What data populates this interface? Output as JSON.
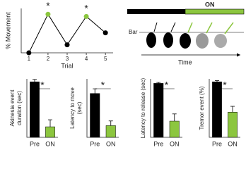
{
  "chart_data": [
    {
      "type": "line",
      "xlabel": "Trial",
      "ylabel": "% Movement",
      "x": [
        1,
        2,
        3,
        4,
        5
      ],
      "values": [
        0,
        87,
        18,
        82,
        45
      ],
      "errors": [
        2,
        5,
        4,
        4,
        5
      ],
      "colors": [
        "#000000",
        "#8cc63f",
        "#000000",
        "#8cc63f",
        "#000000"
      ],
      "line_color": "#000000",
      "xlim": [
        0.6,
        5.4
      ],
      "xticks": [
        1,
        2,
        3,
        4,
        5
      ],
      "ylim": [
        0,
        100
      ],
      "annotations": [
        {
          "text": "*",
          "x": 2
        },
        {
          "text": "*",
          "x": 4
        }
      ]
    },
    {
      "type": "bar",
      "ylabel": [
        "Akinesia event",
        "duration (sec)"
      ],
      "categories": [
        "Pre",
        "ON"
      ],
      "values": [
        9.5,
        1.8
      ],
      "errors": [
        0.4,
        1.2
      ],
      "colors": [
        "#000000",
        "#8cc63f"
      ],
      "ylim": [
        0,
        10
      ],
      "annotation": "*"
    },
    {
      "type": "bar",
      "ylabel": [
        "Latency to move",
        "(sec)"
      ],
      "categories": [
        "Pre",
        "ON"
      ],
      "values": [
        7.5,
        2
      ],
      "errors": [
        0.8,
        0.8
      ],
      "colors": [
        "#000000",
        "#8cc63f"
      ],
      "ylim": [
        0,
        10
      ],
      "annotation": "*"
    },
    {
      "type": "bar",
      "ylabel": [
        "Latency to release (sec)"
      ],
      "categories": [
        "Pre",
        "ON"
      ],
      "values": [
        60,
        18
      ],
      "errors": [
        1,
        8
      ],
      "colors": [
        "#000000",
        "#8cc63f"
      ],
      "ylim": [
        0,
        65
      ],
      "annotation": "*"
    },
    {
      "type": "bar",
      "ylabel": [
        "Tremor event (%)"
      ],
      "categories": [
        "Pre",
        "ON"
      ],
      "values": [
        9.5,
        4.3
      ],
      "errors": [
        0.2,
        1
      ],
      "colors": [
        "#000000",
        "#8cc63f"
      ],
      "ylim": [
        0,
        10
      ],
      "annotation": "*"
    }
  ],
  "diagram": {
    "on_label": "ON",
    "bar_label": "Bar",
    "time_label": "Time"
  }
}
